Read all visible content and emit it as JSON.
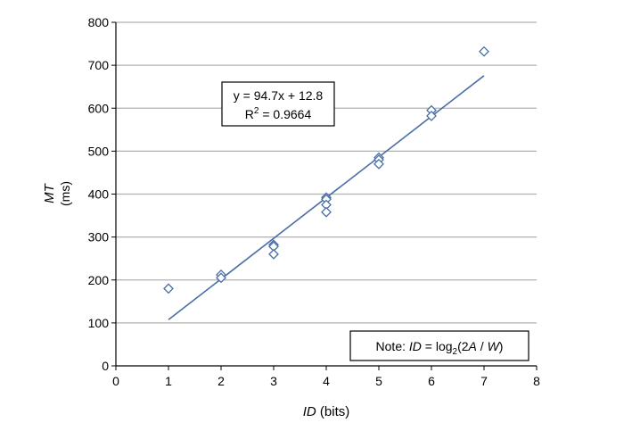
{
  "chart_data": {
    "type": "scatter",
    "title": "",
    "xlabel_var": "ID",
    "xlabel_unit": " (bits)",
    "ylabel_var": "MT",
    "ylabel_unit": "(ms)",
    "xlim": [
      0,
      8
    ],
    "ylim": [
      0,
      800
    ],
    "x_ticks": [
      0,
      1,
      2,
      3,
      4,
      5,
      6,
      7,
      8
    ],
    "y_ticks": [
      0,
      100,
      200,
      300,
      400,
      500,
      600,
      700,
      800
    ],
    "grid": "horizontal",
    "marker": "diamond-open",
    "colors": {
      "marker": "#4a6fa5",
      "trendline": "#4a6fa5",
      "grid": "#b0b0b0",
      "axis": "#000000"
    },
    "points": [
      {
        "x": 1,
        "y": 180
      },
      {
        "x": 2,
        "y": 212
      },
      {
        "x": 2,
        "y": 205
      },
      {
        "x": 3,
        "y": 282
      },
      {
        "x": 3,
        "y": 278
      },
      {
        "x": 3,
        "y": 260
      },
      {
        "x": 4,
        "y": 392
      },
      {
        "x": 4,
        "y": 388
      },
      {
        "x": 4,
        "y": 375
      },
      {
        "x": 4,
        "y": 358
      },
      {
        "x": 5,
        "y": 485
      },
      {
        "x": 5,
        "y": 480
      },
      {
        "x": 5,
        "y": 470
      },
      {
        "x": 6,
        "y": 595
      },
      {
        "x": 6,
        "y": 582
      },
      {
        "x": 7,
        "y": 732
      }
    ],
    "trendline": {
      "slope": 94.7,
      "intercept": 12.8,
      "x_start": 1,
      "x_end": 7,
      "equation": "y = 94.7x + 12.8",
      "r2_prefix": "R",
      "r2_exponent": "2",
      "r2_value": " = 0.9664"
    },
    "note": {
      "prefix": "Note: ",
      "id": "ID",
      "eq": " = log",
      "sub": "2",
      "open": "(2",
      "a": "A",
      "slash": " / ",
      "w": "W",
      "close": ")"
    }
  }
}
